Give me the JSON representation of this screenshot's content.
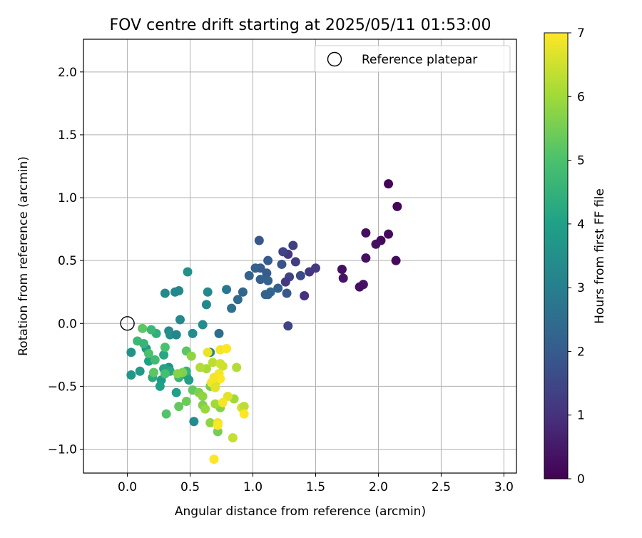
{
  "chart_data": {
    "type": "scatter",
    "title": "FOV centre drift starting at 2025/05/11 01:53:00",
    "xlabel": "Angular distance from reference (arcmin)",
    "ylabel": "Rotation from reference (arcmin)",
    "xlim": [
      -0.35,
      3.1
    ],
    "ylim": [
      -1.19,
      2.26
    ],
    "xticks": [
      0.0,
      0.5,
      1.0,
      1.5,
      2.0,
      2.5,
      3.0
    ],
    "xtick_labels": [
      "0.0",
      "0.5",
      "1.0",
      "1.5",
      "2.0",
      "2.5",
      "3.0"
    ],
    "yticks": [
      -1.0,
      -0.5,
      0.0,
      0.5,
      1.0,
      1.5,
      2.0
    ],
    "ytick_labels": [
      "−1.0",
      "−0.5",
      "0.0",
      "0.5",
      "1.0",
      "1.5",
      "2.0"
    ],
    "grid": true,
    "legend": {
      "placement": "top-right",
      "entries": [
        "Reference platepar"
      ]
    },
    "reference_point": {
      "x": 0.0,
      "y": 0.0
    },
    "colorbar": {
      "label": "Hours from first FF file",
      "colormap": "viridis",
      "range": [
        0,
        7
      ],
      "ticks": [
        0,
        1,
        2,
        3,
        4,
        5,
        6,
        7
      ],
      "tick_labels": [
        "0",
        "1",
        "2",
        "3",
        "4",
        "5",
        "6",
        "7"
      ]
    },
    "points": [
      {
        "x": 2.08,
        "y": 1.11,
        "c": 0.1
      },
      {
        "x": 2.15,
        "y": 0.93,
        "c": 0.1
      },
      {
        "x": 1.9,
        "y": 0.72,
        "c": 0.3
      },
      {
        "x": 2.08,
        "y": 0.71,
        "c": 0.2
      },
      {
        "x": 2.02,
        "y": 0.66,
        "c": 0.2
      },
      {
        "x": 1.98,
        "y": 0.63,
        "c": 0.3
      },
      {
        "x": 1.9,
        "y": 0.52,
        "c": 0.3
      },
      {
        "x": 2.14,
        "y": 0.5,
        "c": 0.2
      },
      {
        "x": 1.71,
        "y": 0.43,
        "c": 0.3
      },
      {
        "x": 1.72,
        "y": 0.36,
        "c": 0.4
      },
      {
        "x": 1.88,
        "y": 0.31,
        "c": 0.4
      },
      {
        "x": 1.85,
        "y": 0.29,
        "c": 0.3
      },
      {
        "x": 1.5,
        "y": 0.44,
        "c": 1.2
      },
      {
        "x": 1.45,
        "y": 0.41,
        "c": 1.1
      },
      {
        "x": 1.41,
        "y": 0.22,
        "c": 1.0
      },
      {
        "x": 1.32,
        "y": 0.62,
        "c": 1.3
      },
      {
        "x": 1.28,
        "y": 0.55,
        "c": 1.1
      },
      {
        "x": 1.24,
        "y": 0.57,
        "c": 1.4
      },
      {
        "x": 1.34,
        "y": 0.49,
        "c": 1.3
      },
      {
        "x": 1.38,
        "y": 0.38,
        "c": 1.6
      },
      {
        "x": 1.29,
        "y": 0.37,
        "c": 1.4
      },
      {
        "x": 1.26,
        "y": 0.33,
        "c": 1.2
      },
      {
        "x": 1.23,
        "y": 0.47,
        "c": 1.8
      },
      {
        "x": 1.27,
        "y": 0.24,
        "c": 1.9
      },
      {
        "x": 1.28,
        "y": -0.02,
        "c": 1.4
      },
      {
        "x": 1.05,
        "y": 0.66,
        "c": 1.9
      },
      {
        "x": 1.12,
        "y": 0.5,
        "c": 2.0
      },
      {
        "x": 1.06,
        "y": 0.44,
        "c": 2.0
      },
      {
        "x": 1.02,
        "y": 0.44,
        "c": 2.1
      },
      {
        "x": 1.11,
        "y": 0.4,
        "c": 2.0
      },
      {
        "x": 0.97,
        "y": 0.38,
        "c": 2.2
      },
      {
        "x": 1.06,
        "y": 0.35,
        "c": 2.1
      },
      {
        "x": 1.12,
        "y": 0.34,
        "c": 2.2
      },
      {
        "x": 1.2,
        "y": 0.28,
        "c": 2.1
      },
      {
        "x": 1.14,
        "y": 0.25,
        "c": 2.3
      },
      {
        "x": 1.1,
        "y": 0.23,
        "c": 2.2
      },
      {
        "x": 1.12,
        "y": 0.23,
        "c": 2.2
      },
      {
        "x": 0.92,
        "y": 0.25,
        "c": 2.3
      },
      {
        "x": 0.88,
        "y": 0.19,
        "c": 2.4
      },
      {
        "x": 0.83,
        "y": 0.12,
        "c": 2.6
      },
      {
        "x": 0.79,
        "y": 0.27,
        "c": 2.8
      },
      {
        "x": 0.73,
        "y": -0.08,
        "c": 2.5
      },
      {
        "x": 0.48,
        "y": 0.41,
        "c": 3.5
      },
      {
        "x": 0.64,
        "y": 0.25,
        "c": 3.3
      },
      {
        "x": 0.63,
        "y": 0.15,
        "c": 3.2
      },
      {
        "x": 0.41,
        "y": 0.26,
        "c": 3.3
      },
      {
        "x": 0.38,
        "y": 0.25,
        "c": 3.2
      },
      {
        "x": 0.3,
        "y": 0.24,
        "c": 3.3
      },
      {
        "x": 0.42,
        "y": 0.03,
        "c": 3.3
      },
      {
        "x": 0.6,
        "y": -0.01,
        "c": 3.4
      },
      {
        "x": 0.52,
        "y": -0.08,
        "c": 3.4
      },
      {
        "x": 0.33,
        "y": -0.06,
        "c": 3.3
      },
      {
        "x": 0.34,
        "y": -0.09,
        "c": 3.5
      },
      {
        "x": 0.39,
        "y": -0.09,
        "c": 3.2
      },
      {
        "x": 0.03,
        "y": -0.23,
        "c": 3.6
      },
      {
        "x": 0.03,
        "y": -0.41,
        "c": 3.7
      },
      {
        "x": 0.1,
        "y": -0.38,
        "c": 3.8
      },
      {
        "x": 0.33,
        "y": -0.35,
        "c": 3.6
      },
      {
        "x": 0.47,
        "y": -0.41,
        "c": 3.9
      },
      {
        "x": 0.49,
        "y": -0.45,
        "c": 3.9
      },
      {
        "x": 0.53,
        "y": -0.78,
        "c": 3.4
      },
      {
        "x": 0.66,
        "y": -0.23,
        "c": 3.2
      },
      {
        "x": 0.39,
        "y": -0.55,
        "c": 4.0
      },
      {
        "x": 0.27,
        "y": -0.45,
        "c": 3.8
      },
      {
        "x": 0.15,
        "y": -0.2,
        "c": 3.8
      },
      {
        "x": 0.17,
        "y": -0.3,
        "c": 4.0
      },
      {
        "x": 0.29,
        "y": -0.36,
        "c": 4.1
      },
      {
        "x": 0.26,
        "y": -0.5,
        "c": 4.0
      },
      {
        "x": 0.34,
        "y": -0.38,
        "c": 4.2
      },
      {
        "x": 0.2,
        "y": -0.43,
        "c": 4.3
      },
      {
        "x": 0.23,
        "y": -0.08,
        "c": 4.4
      },
      {
        "x": 0.29,
        "y": -0.25,
        "c": 4.2
      },
      {
        "x": 0.41,
        "y": -0.43,
        "c": 4.6
      },
      {
        "x": 0.47,
        "y": -0.38,
        "c": 4.5
      },
      {
        "x": 0.19,
        "y": -0.05,
        "c": 4.7
      },
      {
        "x": 0.08,
        "y": -0.14,
        "c": 4.7
      },
      {
        "x": 0.13,
        "y": -0.16,
        "c": 4.6
      },
      {
        "x": 0.22,
        "y": -0.29,
        "c": 4.8
      },
      {
        "x": 0.17,
        "y": -0.24,
        "c": 5.0
      },
      {
        "x": 0.3,
        "y": -0.4,
        "c": 4.9
      },
      {
        "x": 0.21,
        "y": -0.39,
        "c": 5.2
      },
      {
        "x": 0.3,
        "y": -0.19,
        "c": 5.0
      },
      {
        "x": 0.12,
        "y": -0.04,
        "c": 5.2
      },
      {
        "x": 0.47,
        "y": -0.22,
        "c": 5.2
      },
      {
        "x": 0.31,
        "y": -0.72,
        "c": 5.1
      },
      {
        "x": 0.41,
        "y": -0.66,
        "c": 5.3
      },
      {
        "x": 0.47,
        "y": -0.62,
        "c": 5.4
      },
      {
        "x": 0.52,
        "y": -0.53,
        "c": 5.3
      },
      {
        "x": 0.44,
        "y": -0.39,
        "c": 5.6
      },
      {
        "x": 0.4,
        "y": -0.4,
        "c": 5.7
      },
      {
        "x": 0.51,
        "y": -0.26,
        "c": 5.8
      },
      {
        "x": 0.57,
        "y": -0.55,
        "c": 5.6
      },
      {
        "x": 0.6,
        "y": -0.58,
        "c": 5.8
      },
      {
        "x": 0.6,
        "y": -0.65,
        "c": 5.6
      },
      {
        "x": 0.62,
        "y": -0.68,
        "c": 5.9
      },
      {
        "x": 0.66,
        "y": -0.5,
        "c": 5.5
      },
      {
        "x": 0.66,
        "y": -0.79,
        "c": 5.8
      },
      {
        "x": 0.72,
        "y": -0.86,
        "c": 5.5
      },
      {
        "x": 0.74,
        "y": -0.67,
        "c": 5.7
      },
      {
        "x": 0.7,
        "y": -0.64,
        "c": 6.0
      },
      {
        "x": 0.63,
        "y": -0.36,
        "c": 6.1
      },
      {
        "x": 0.58,
        "y": -0.35,
        "c": 6.2
      },
      {
        "x": 0.68,
        "y": -0.31,
        "c": 6.3
      },
      {
        "x": 0.74,
        "y": -0.32,
        "c": 6.5
      },
      {
        "x": 0.76,
        "y": -0.34,
        "c": 6.5
      },
      {
        "x": 0.87,
        "y": -0.35,
        "c": 6.2
      },
      {
        "x": 0.85,
        "y": -0.6,
        "c": 6.0
      },
      {
        "x": 0.84,
        "y": -0.91,
        "c": 6.4
      },
      {
        "x": 0.91,
        "y": -0.67,
        "c": 6.6
      },
      {
        "x": 0.93,
        "y": -0.66,
        "c": 6.3
      },
      {
        "x": 0.8,
        "y": -0.58,
        "c": 6.7
      },
      {
        "x": 0.72,
        "y": -0.79,
        "c": 6.8
      },
      {
        "x": 0.71,
        "y": -0.46,
        "c": 6.5
      },
      {
        "x": 0.67,
        "y": -0.47,
        "c": 6.9
      },
      {
        "x": 0.73,
        "y": -0.4,
        "c": 6.9
      },
      {
        "x": 0.74,
        "y": -0.44,
        "c": 7.0
      },
      {
        "x": 0.69,
        "y": -0.43,
        "c": 6.9
      },
      {
        "x": 0.7,
        "y": -0.51,
        "c": 6.7
      },
      {
        "x": 0.76,
        "y": -0.63,
        "c": 6.9
      },
      {
        "x": 0.64,
        "y": -0.23,
        "c": 6.8
      },
      {
        "x": 0.74,
        "y": -0.21,
        "c": 6.9
      },
      {
        "x": 0.79,
        "y": -0.2,
        "c": 7.0
      },
      {
        "x": 0.69,
        "y": -1.08,
        "c": 7.0
      },
      {
        "x": 0.93,
        "y": -0.72,
        "c": 7.0
      },
      {
        "x": 0.72,
        "y": -0.81,
        "c": 7.0
      }
    ]
  }
}
